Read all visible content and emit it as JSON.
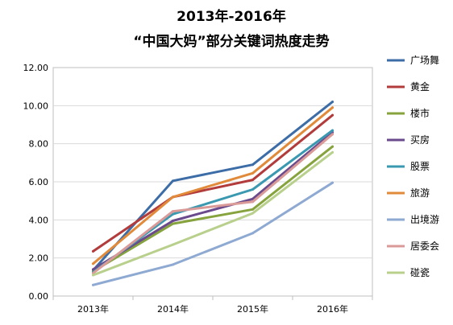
{
  "chart_data": {
    "type": "line",
    "title": "2013年-2016年",
    "subtitle": "“中国大妈”部分关键词热度走势",
    "xlabel": "",
    "ylabel": "",
    "categories": [
      "2013年",
      "2014年",
      "2015年",
      "2016年"
    ],
    "ylim": [
      0,
      12
    ],
    "yticks": [
      "0.00",
      "2.00",
      "4.00",
      "6.00",
      "8.00",
      "10.00",
      "12.00"
    ],
    "grid": true,
    "legend_position": "right",
    "series": [
      {
        "name": "广场舞",
        "color": "#3d6da7",
        "values": [
          1.35,
          6.05,
          6.9,
          10.2
        ]
      },
      {
        "name": "黄金",
        "color": "#b23b3b",
        "values": [
          2.35,
          5.2,
          6.1,
          9.5
        ]
      },
      {
        "name": "楼市",
        "color": "#86a33e",
        "values": [
          1.3,
          3.8,
          4.55,
          7.85
        ]
      },
      {
        "name": "买房",
        "color": "#6a4a8c",
        "values": [
          1.4,
          3.95,
          5.1,
          8.6
        ]
      },
      {
        "name": "股票",
        "color": "#3a99b0",
        "values": [
          1.25,
          4.3,
          5.6,
          8.7
        ]
      },
      {
        "name": "旅游",
        "color": "#e08a3a",
        "values": [
          1.7,
          5.2,
          6.45,
          9.9
        ]
      },
      {
        "name": "出境游",
        "color": "#8ea9d2",
        "values": [
          0.58,
          1.65,
          3.3,
          5.95
        ]
      },
      {
        "name": "居委会",
        "color": "#d99a98",
        "values": [
          1.2,
          4.45,
          4.95,
          8.5
        ]
      },
      {
        "name": "碰瓷",
        "color": "#b8d08c",
        "values": [
          1.1,
          2.7,
          4.35,
          7.55
        ]
      }
    ]
  }
}
